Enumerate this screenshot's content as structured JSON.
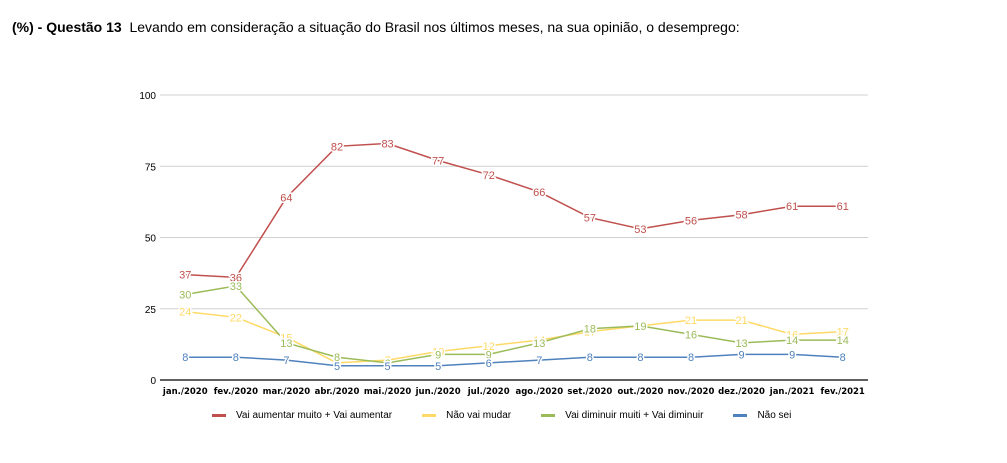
{
  "header": {
    "prefix": "(%) - Questão 13",
    "question": "Levando em consideração a situação do Brasil nos últimos meses, na sua opinião, o desemprego:"
  },
  "chart_data": {
    "type": "line",
    "categories": [
      "jan./2020",
      "fev./2020",
      "mar./2020",
      "abr./2020",
      "mai./2020",
      "jun./2020",
      "jul./2020",
      "ago./2020",
      "set./2020",
      "out./2020",
      "nov./2020",
      "dez./2020",
      "jan./2021",
      "fev./2021"
    ],
    "ylim": [
      0,
      100
    ],
    "yticks": [
      0,
      25,
      50,
      75,
      100
    ],
    "grid": true,
    "legend": "bottom",
    "series": [
      {
        "name": "Vai aumentar muito + Vai aumentar",
        "color": "#c0504d",
        "values": [
          37,
          36,
          64,
          82,
          83,
          77,
          72,
          66,
          57,
          53,
          56,
          58,
          61,
          61
        ]
      },
      {
        "name": "Não vai mudar",
        "color": "#ffd966",
        "values": [
          24,
          22,
          15,
          6,
          7,
          10,
          12,
          14,
          17,
          19,
          21,
          21,
          16,
          17
        ]
      },
      {
        "name": "Vai diminuir muiti + Vai diminuir",
        "color": "#9bbb59",
        "values": [
          30,
          33,
          13,
          8,
          6,
          9,
          9,
          13,
          18,
          19,
          16,
          13,
          14,
          14
        ]
      },
      {
        "name": "Não sei",
        "color": "#4f81bd",
        "values": [
          8,
          8,
          7,
          5,
          5,
          5,
          6,
          7,
          8,
          8,
          8,
          9,
          9,
          8
        ]
      }
    ]
  }
}
